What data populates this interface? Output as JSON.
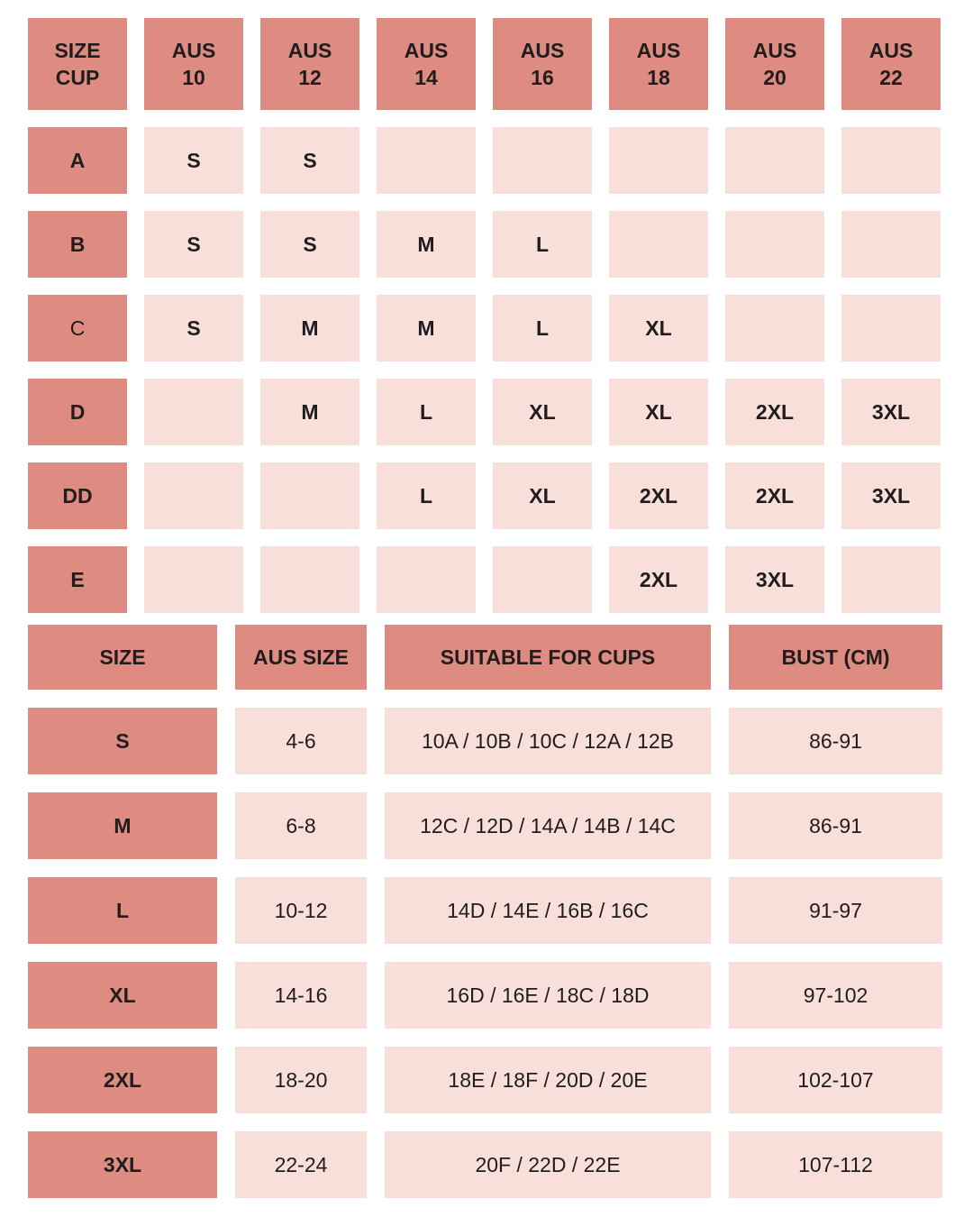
{
  "colors": {
    "header_bg": "#DE8B81",
    "cell_bg": "#F8DFDA",
    "text": "#1F1D1D",
    "background": "#FFFFFF"
  },
  "cup_table": {
    "columns": [
      "SIZE\nCUP",
      "AUS\n10",
      "AUS\n12",
      "AUS\n14",
      "AUS\n16",
      "AUS\n18",
      "AUS\n20",
      "AUS\n22"
    ],
    "rows": [
      {
        "cup": "A",
        "values": [
          "S",
          "S",
          "",
          "",
          "",
          "",
          ""
        ]
      },
      {
        "cup": "B",
        "values": [
          "S",
          "S",
          "M",
          "L",
          "",
          "",
          ""
        ]
      },
      {
        "cup": "C",
        "label_weight": "regular",
        "values": [
          "S",
          "M",
          "M",
          "L",
          "XL",
          "",
          ""
        ]
      },
      {
        "cup": "D",
        "values": [
          "",
          "M",
          "L",
          "XL",
          "XL",
          "2XL",
          "3XL"
        ]
      },
      {
        "cup": "DD",
        "values": [
          "",
          "",
          "L",
          "XL",
          "2XL",
          "2XL",
          "3XL"
        ]
      },
      {
        "cup": "E",
        "values": [
          "",
          "",
          "",
          "",
          "2XL",
          "3XL",
          ""
        ]
      }
    ]
  },
  "size_table": {
    "columns": [
      "SIZE",
      "AUS SIZE",
      "SUITABLE FOR CUPS",
      "BUST (CM)"
    ],
    "rows": [
      {
        "size": "S",
        "aus_size": "4-6",
        "cups": "10A / 10B / 10C / 12A / 12B",
        "bust_cm": "86-91"
      },
      {
        "size": "M",
        "aus_size": "6-8",
        "cups": "12C / 12D / 14A / 14B / 14C",
        "bust_cm": "86-91"
      },
      {
        "size": "L",
        "aus_size": "10-12",
        "cups": "14D / 14E / 16B / 16C",
        "bust_cm": "91-97"
      },
      {
        "size": "XL",
        "aus_size": "14-16",
        "cups": "16D / 16E / 18C / 18D",
        "bust_cm": "97-102"
      },
      {
        "size": "2XL",
        "aus_size": "18-20",
        "cups": "18E / 18F / 20D / 20E",
        "bust_cm": "102-107"
      },
      {
        "size": "3XL",
        "aus_size": "22-24",
        "cups": "20F / 22D / 22E",
        "bust_cm": "107-112"
      }
    ]
  },
  "chart_data": [
    {
      "type": "table",
      "columns": [
        "SIZE CUP",
        "AUS 10",
        "AUS 12",
        "AUS 14",
        "AUS 16",
        "AUS 18",
        "AUS 20",
        "AUS 22"
      ],
      "rows": [
        [
          "A",
          "S",
          "S",
          "",
          "",
          "",
          "",
          ""
        ],
        [
          "B",
          "S",
          "S",
          "M",
          "L",
          "",
          "",
          ""
        ],
        [
          "C",
          "S",
          "M",
          "M",
          "L",
          "XL",
          "",
          ""
        ],
        [
          "D",
          "",
          "M",
          "L",
          "XL",
          "XL",
          "2XL",
          "3XL"
        ],
        [
          "DD",
          "",
          "",
          "L",
          "XL",
          "2XL",
          "2XL",
          "3XL"
        ],
        [
          "E",
          "",
          "",
          "",
          "",
          "2XL",
          "3XL",
          ""
        ]
      ]
    },
    {
      "type": "table",
      "columns": [
        "SIZE",
        "AUS SIZE",
        "SUITABLE FOR CUPS",
        "BUST (CM)"
      ],
      "rows": [
        [
          "S",
          "4-6",
          "10A / 10B / 10C / 12A / 12B",
          "86-91"
        ],
        [
          "M",
          "6-8",
          "12C / 12D / 14A / 14B / 14C",
          "86-91"
        ],
        [
          "L",
          "10-12",
          "14D / 14E / 16B / 16C",
          "91-97"
        ],
        [
          "XL",
          "14-16",
          "16D / 16E / 18C / 18D",
          "97-102"
        ],
        [
          "2XL",
          "18-20",
          "18E / 18F / 20D / 20E",
          "102-107"
        ],
        [
          "3XL",
          "22-24",
          "20F / 22D / 22E",
          "107-112"
        ]
      ]
    }
  ]
}
